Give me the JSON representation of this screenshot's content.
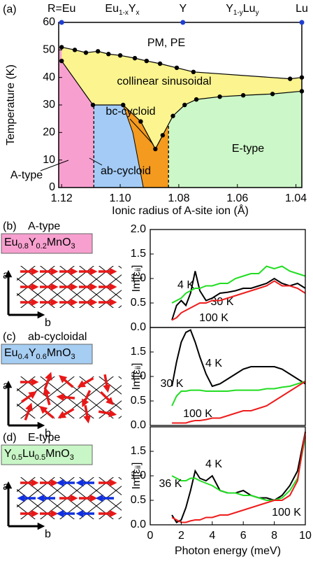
{
  "chart_data": [
    {
      "type": "phase",
      "panel_label": "(a)",
      "xlabel": "Ionic radius of A-site ion (Å)",
      "ylabel": "Temperature (K)",
      "xlim": [
        1.121,
        1.038
      ],
      "ylim": [
        0,
        60
      ],
      "xticks": [
        1.12,
        {
          "value": 1.1,
          "label": "1.10"
        },
        1.08,
        1.06,
        1.04
      ],
      "yticks": [
        0,
        10,
        20,
        30,
        40,
        50,
        60
      ],
      "top_labels": [
        [
          "R=Eu"
        ],
        [
          "Eu",
          "1-x",
          "Y",
          "x"
        ],
        [
          "Y"
        ],
        [
          "Y",
          "1-y",
          "Lu",
          "y"
        ],
        [
          "Lu"
        ]
      ],
      "top_markers": [
        1.12,
        1.0786,
        1.038
      ],
      "top_marker_color": "#1f3fd0",
      "series": [
        {
          "color": "#000000",
          "x": [
            1.12,
            1.1155,
            1.1117,
            1.1076,
            1.104,
            1.1,
            1.095,
            1.091,
            1.0864,
            1.0807,
            1.075,
            1.042,
            1.038
          ],
          "values": [
            51,
            50,
            49,
            49.5,
            48.5,
            48,
            47,
            46,
            45,
            43.5,
            42,
            39.5,
            40
          ]
        },
        {
          "color": "#000000",
          "x": [
            1.12,
            1.1093,
            1.099,
            1.093,
            1.088,
            1.0855,
            1.082,
            1.078,
            1.074,
            1.066,
            1.058,
            1.048,
            1.038
          ],
          "values": [
            46,
            30,
            30,
            24,
            14,
            19,
            26,
            30,
            32,
            33,
            33.5,
            34,
            35
          ]
        }
      ],
      "ab_bc_boundary": {
        "x": [
          1.099,
          1.0957,
          1.0921
        ],
        "y": [
          30,
          20,
          0
        ]
      },
      "boundaries": [
        1.109,
        1.0835
      ],
      "regions": [
        {
          "name": "PM, PE",
          "color": "#ffffff"
        },
        {
          "name": "collinear sinusoidal",
          "color": "#fbf48f"
        },
        {
          "name": "bc-cycloid",
          "color": "#f49a1e"
        },
        {
          "name": "ab-cycloid",
          "color": "#a3cbf5"
        },
        {
          "name": "A-type",
          "color": "#f7a0cf"
        },
        {
          "name": "E-type",
          "color": "#ccf7c8"
        }
      ]
    },
    {
      "type": "line",
      "xlim": [
        0,
        10
      ],
      "ylim": [
        0,
        2
      ],
      "yticks": [
        {
          "value": 0,
          "label": "0.0"
        },
        0.5,
        {
          "value": 1,
          "label": "1.0"
        },
        1.5,
        {
          "value": 2,
          "label": "2.0"
        }
      ],
      "ylabel": "Im[εᵢᵢ]",
      "x": [
        1.4,
        1.7,
        2.0,
        2.3,
        2.6,
        2.9,
        3.2,
        3.6,
        4.0,
        4.5,
        5.0,
        5.5,
        6.0,
        6.5,
        7.0,
        7.5,
        8.0,
        8.5,
        9.0,
        9.5,
        10.0
      ],
      "series": [
        {
          "name": "4 K",
          "color": "#000000",
          "values": [
            0.15,
            0.45,
            0.55,
            0.45,
            0.7,
            1.15,
            0.75,
            0.55,
            0.6,
            0.7,
            0.72,
            0.75,
            0.8,
            0.8,
            0.85,
            0.9,
            1.0,
            0.9,
            0.85,
            0.9,
            0.8
          ]
        },
        {
          "name": "30 K",
          "color": "#22dd22",
          "values": [
            0.5,
            0.55,
            0.6,
            0.7,
            0.75,
            0.8,
            0.8,
            0.85,
            0.85,
            0.9,
            0.9,
            1.0,
            1.05,
            1.1,
            1.1,
            1.25,
            1.2,
            1.25,
            1.15,
            1.1,
            1.05
          ]
        },
        {
          "name": "100 K",
          "color": "#ee1c1c",
          "values": [
            0.15,
            0.2,
            0.3,
            0.35,
            0.4,
            0.45,
            0.5,
            0.5,
            0.55,
            0.55,
            0.6,
            0.65,
            0.7,
            0.75,
            0.8,
            0.85,
            0.95,
            0.85,
            0.85,
            0.8,
            0.7
          ]
        }
      ]
    },
    {
      "type": "line",
      "xlim": [
        0,
        10
      ],
      "ylim": [
        0,
        2
      ],
      "yticks": [
        {
          "value": 0,
          "label": "0.0"
        },
        0.5,
        {
          "value": 1,
          "label": "1.0"
        },
        1.5
      ],
      "ylabel": "Im[εᵢᵢ]",
      "x": [
        1.4,
        1.7,
        2.0,
        2.3,
        2.6,
        2.9,
        3.2,
        3.6,
        4.0,
        4.5,
        5.0,
        5.5,
        6.0,
        6.5,
        7.0,
        7.5,
        8.0,
        8.5,
        9.0,
        9.5,
        10.0
      ],
      "series": [
        {
          "name": "4 K",
          "color": "#000000",
          "values": [
            0.8,
            1.3,
            1.7,
            1.9,
            1.95,
            1.7,
            1.4,
            1.05,
            0.8,
            0.85,
            0.95,
            1.05,
            1.15,
            1.2,
            1.2,
            1.2,
            1.2,
            1.15,
            1.05,
            0.95,
            0.85
          ]
        },
        {
          "name": "30 K",
          "color": "#22dd22",
          "values": [
            0.4,
            0.6,
            0.7,
            0.7,
            0.72,
            0.72,
            0.72,
            0.7,
            0.7,
            0.7,
            0.7,
            0.72,
            0.72,
            0.72,
            0.72,
            0.75,
            0.75,
            0.78,
            0.8,
            0.85,
            0.9
          ]
        },
        {
          "name": "100 K",
          "color": "#ee1c1c",
          "values": [
            0.05,
            0.05,
            0.05,
            0.05,
            0.08,
            0.1,
            0.1,
            0.12,
            0.15,
            0.15,
            0.2,
            0.25,
            0.3,
            0.3,
            0.35,
            0.4,
            0.5,
            0.6,
            0.7,
            0.8,
            0.9
          ]
        }
      ]
    },
    {
      "type": "line",
      "xlim": [
        0,
        10
      ],
      "ylim": [
        0,
        2
      ],
      "xticks": [
        0,
        2,
        4,
        6,
        8,
        10
      ],
      "xlabel": "Photon energy (meV)",
      "yticks": [
        {
          "value": 0,
          "label": "0.0"
        },
        0.5,
        {
          "value": 1,
          "label": "1.0"
        },
        1.5
      ],
      "ylabel": "Im[εᵢᵢ]",
      "x": [
        1.4,
        1.7,
        2.0,
        2.3,
        2.6,
        2.9,
        3.2,
        3.6,
        4.0,
        4.5,
        5.0,
        5.5,
        6.0,
        6.5,
        7.0,
        7.5,
        8.0,
        8.5,
        9.0,
        9.5,
        10.0
      ],
      "series": [
        {
          "name": "4 K",
          "color": "#000000",
          "values": [
            0.2,
            0.05,
            0.1,
            0.35,
            0.7,
            1.1,
            0.95,
            0.9,
            1.0,
            0.7,
            0.65,
            0.65,
            0.7,
            0.6,
            0.55,
            0.55,
            0.5,
            0.6,
            0.8,
            1.1,
            1.9
          ]
        },
        {
          "name": "36 K",
          "color": "#22dd22",
          "values": [
            1.0,
            0.95,
            0.9,
            0.9,
            0.95,
            0.95,
            0.9,
            0.85,
            0.8,
            0.7,
            0.65,
            0.65,
            0.6,
            0.6,
            0.55,
            0.5,
            0.5,
            0.55,
            0.7,
            0.95,
            1.8
          ]
        },
        {
          "name": "100 K",
          "color": "#ee1c1c",
          "values": [
            0.15,
            0.1,
            0.05,
            0.05,
            0.08,
            0.1,
            0.1,
            0.15,
            0.15,
            0.2,
            0.2,
            0.25,
            0.3,
            0.35,
            0.4,
            0.45,
            0.5,
            0.5,
            0.6,
            0.9,
            1.9
          ]
        }
      ]
    }
  ],
  "panels": [
    {
      "label": "(b)",
      "title": "A-type",
      "formula": [
        "Eu",
        "0.8",
        "Y",
        "0.2",
        "MnO",
        "3"
      ],
      "color": "#f7a0cf",
      "axes": [
        "a",
        "b"
      ]
    },
    {
      "label": "(c)",
      "title": "ab-cycloidal",
      "formula": [
        "Eu",
        "0.4",
        "Y",
        "0.6",
        "MnO",
        "3"
      ],
      "color": "#a6cdf2",
      "axes": [
        "a",
        "b"
      ]
    },
    {
      "label": "(d)",
      "title": "E-type",
      "formula": [
        "Y",
        "0.5",
        "Lu",
        "0.5",
        "MnO",
        "3"
      ],
      "color": "#c9f6c6",
      "axes": [
        "a",
        "b"
      ]
    }
  ]
}
